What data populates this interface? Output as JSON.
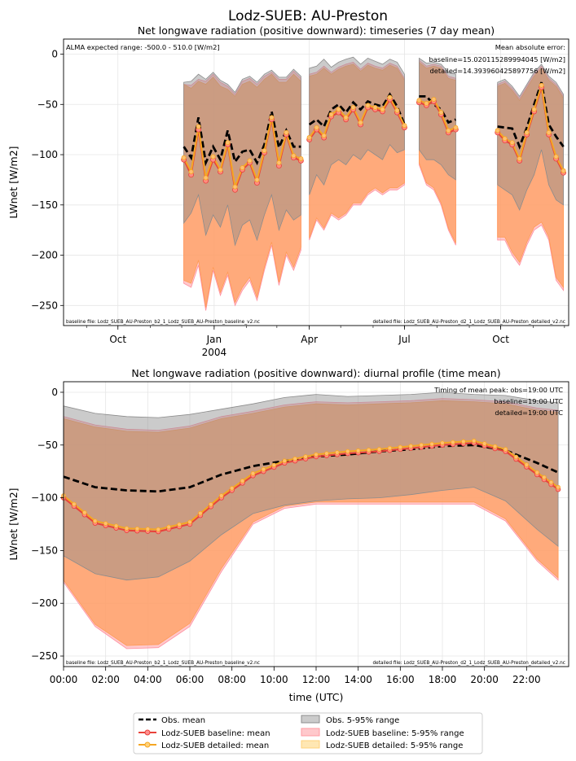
{
  "suptitle": "Lodz-SUEB: AU-Preston",
  "colors": {
    "obs_mean": "#000000",
    "baseline": "#e8423a",
    "detailed": "#f5a623",
    "obs_range": "#8c8c8c",
    "baseline_range": "#ff9aa0",
    "detailed_range": "#ffa060",
    "overlap_range": "#c88a6c"
  },
  "legend": {
    "position": "bottom-center",
    "items": [
      {
        "label": "Obs. mean",
        "kind": "dashed"
      },
      {
        "label": "Lodz-SUEB baseline: mean",
        "kind": "line-baseline"
      },
      {
        "label": "Lodz-SUEB detailed: mean",
        "kind": "line-detailed"
      },
      {
        "label": "Obs. 5-95% range",
        "kind": "patch-obs"
      },
      {
        "label": "Lodz-SUEB baseline: 5-95% range",
        "kind": "patch-baseline"
      },
      {
        "label": "Lodz-SUEB detailed: 5-95% range",
        "kind": "patch-detailed"
      }
    ]
  },
  "chart_data": [
    {
      "type": "line",
      "title": "Net longwave radiation (positive downward): timeseries (7 day mean)",
      "ylabel": "LWnet [W/m2]",
      "xlabel": "",
      "ylim": [
        -270,
        15
      ],
      "xlim": [
        "2003-08-10",
        "2004-12-05"
      ],
      "grid": true,
      "x_ticks": [
        {
          "date": "2003-10-01",
          "label": "Oct",
          "sublabel": ""
        },
        {
          "date": "2004-01-01",
          "label": "Jan",
          "sublabel": "2004"
        },
        {
          "date": "2004-04-01",
          "label": "Apr",
          "sublabel": ""
        },
        {
          "date": "2004-07-01",
          "label": "Jul",
          "sublabel": ""
        },
        {
          "date": "2004-10-01",
          "label": "Oct",
          "sublabel": ""
        }
      ],
      "y_ticks": [
        0,
        -50,
        -100,
        -150,
        -200,
        -250
      ],
      "y_tick_labels": [
        "0",
        "−50",
        "−100",
        "−150",
        "−200",
        "−250"
      ],
      "annotations": {
        "top_left": "ALMA expected range: -500.0 - 510.0 [W/m2]",
        "top_right": [
          "Mean absolute error:",
          "baseline=15.020115289994045 [W/m2]",
          "detailed=14.393960425897756 [W/m2]"
        ],
        "bottom_left": "baseline file: Lodz_SUEB_AU-Preston_b2_1_Lodz_SUEB_AU-Preston_baseline_v2.nc",
        "bottom_right": "detailed file: Lodz_SUEB_AU-Preston_d2_1_Lodz_SUEB_AU-Preston_detailed_v2.nc"
      },
      "segments": [
        {
          "x": [
            "2003-12-03",
            "2003-12-10",
            "2003-12-17",
            "2003-12-24",
            "2003-12-31",
            "2004-01-07",
            "2004-01-14",
            "2004-01-21",
            "2004-01-28",
            "2004-02-04",
            "2004-02-11",
            "2004-02-18",
            "2004-02-25",
            "2004-03-03",
            "2004-03-10",
            "2004-03-17",
            "2004-03-24"
          ],
          "obs_mean": [
            -92,
            -103,
            -63,
            -108,
            -92,
            -105,
            -76,
            -107,
            -97,
            -95,
            -108,
            -90,
            -57,
            -93,
            -76,
            -92,
            -92
          ],
          "baseline_mean": [
            -105,
            -120,
            -75,
            -126,
            -105,
            -117,
            -90,
            -135,
            -115,
            -108,
            -128,
            -98,
            -65,
            -111,
            -80,
            -103,
            -106
          ],
          "detailed_mean": [
            -103,
            -117,
            -72,
            -123,
            -102,
            -115,
            -88,
            -132,
            -113,
            -106,
            -125,
            -96,
            -63,
            -108,
            -78,
            -101,
            -104
          ],
          "obs_lo": [
            -168,
            -158,
            -140,
            -180,
            -160,
            -172,
            -150,
            -190,
            -170,
            -165,
            -185,
            -160,
            -140,
            -175,
            -155,
            -165,
            -160
          ],
          "obs_hi": [
            -28,
            -27,
            -20,
            -25,
            -18,
            -26,
            -30,
            -38,
            -25,
            -22,
            -28,
            -20,
            -16,
            -23,
            -23,
            -15,
            -22
          ],
          "baseline_lo": [
            -228,
            -232,
            -210,
            -255,
            -215,
            -240,
            -220,
            -250,
            -235,
            -225,
            -245,
            -215,
            -190,
            -230,
            -200,
            -215,
            -195
          ],
          "baseline_hi": [
            -30,
            -31,
            -25,
            -27,
            -20,
            -28,
            -32,
            -40,
            -27,
            -24,
            -30,
            -22,
            -18,
            -25,
            -25,
            -17,
            -24
          ],
          "detailed_lo": [
            -225,
            -228,
            -205,
            -252,
            -212,
            -237,
            -217,
            -247,
            -232,
            -222,
            -242,
            -212,
            -187,
            -227,
            -197,
            -212,
            -192
          ],
          "detailed_hi": [
            -30,
            -34,
            -27,
            -30,
            -23,
            -32,
            -35,
            -42,
            -30,
            -27,
            -33,
            -25,
            -20,
            -28,
            -28,
            -20,
            -27
          ]
        },
        {
          "x": [
            "2004-04-01",
            "2004-04-08",
            "2004-04-15",
            "2004-04-22",
            "2004-04-29",
            "2004-05-06",
            "2004-05-13",
            "2004-05-20",
            "2004-05-27",
            "2004-06-03",
            "2004-06-10",
            "2004-06-17",
            "2004-06-24",
            "2004-07-01"
          ],
          "obs_mean": [
            -70,
            -65,
            -72,
            -55,
            -50,
            -58,
            -48,
            -55,
            -47,
            -50,
            -52,
            -40,
            -52,
            -70
          ],
          "baseline_mean": [
            -85,
            -75,
            -83,
            -62,
            -58,
            -65,
            -55,
            -70,
            -53,
            -55,
            -57,
            -45,
            -58,
            -73
          ],
          "detailed_mean": [
            -83,
            -73,
            -81,
            -60,
            -55,
            -63,
            -53,
            -68,
            -51,
            -53,
            -55,
            -43,
            -56,
            -71
          ],
          "obs_lo": [
            -140,
            -120,
            -130,
            -110,
            -105,
            -110,
            -100,
            -105,
            -95,
            -100,
            -105,
            -90,
            -98,
            -95
          ],
          "obs_hi": [
            -14,
            -12,
            -5,
            -13,
            -8,
            -5,
            -3,
            -10,
            -4,
            -7,
            -10,
            -5,
            -8,
            -20
          ],
          "baseline_lo": [
            -185,
            -165,
            -175,
            -160,
            -165,
            -160,
            -150,
            -150,
            -140,
            -135,
            -140,
            -135,
            -135,
            -130
          ],
          "baseline_hi": [
            -20,
            -18,
            -12,
            -18,
            -13,
            -10,
            -8,
            -15,
            -9,
            -12,
            -14,
            -9,
            -12,
            -24
          ],
          "detailed_lo": [
            -183,
            -163,
            -173,
            -158,
            -163,
            -158,
            -148,
            -148,
            -138,
            -133,
            -138,
            -133,
            -133,
            -128
          ],
          "detailed_hi": [
            -22,
            -20,
            -14,
            -20,
            -15,
            -12,
            -10,
            -17,
            -11,
            -14,
            -16,
            -11,
            -14,
            -26
          ]
        },
        {
          "x": [
            "2004-07-15",
            "2004-07-22",
            "2004-07-29",
            "2004-08-05",
            "2004-08-12",
            "2004-08-19"
          ],
          "obs_mean": [
            -42,
            -42,
            -50,
            -55,
            -68,
            -65
          ],
          "baseline_mean": [
            -48,
            -51,
            -47,
            -60,
            -78,
            -75
          ],
          "detailed_mean": [
            -46,
            -49,
            -45,
            -58,
            -76,
            -73
          ],
          "obs_lo": [
            -95,
            -105,
            -105,
            -110,
            -120,
            -125
          ],
          "obs_hi": [
            -4,
            -9,
            -8,
            -10,
            -18,
            -20
          ],
          "baseline_lo": [
            -110,
            -130,
            -135,
            -150,
            -175,
            -190
          ],
          "baseline_hi": [
            -6,
            -12,
            -10,
            -12,
            -22,
            -24
          ],
          "detailed_lo": [
            -108,
            -128,
            -133,
            -148,
            -173,
            -188
          ],
          "detailed_hi": [
            -8,
            -14,
            -12,
            -14,
            -24,
            -26
          ]
        },
        {
          "x": [
            "2004-09-28",
            "2004-10-05",
            "2004-10-12",
            "2004-10-19",
            "2004-10-26",
            "2004-11-02",
            "2004-11-09",
            "2004-11-16",
            "2004-11-23",
            "2004-11-30"
          ],
          "obs_mean": [
            -72,
            -73,
            -74,
            -92,
            -73,
            -50,
            -28,
            -70,
            -82,
            -92
          ],
          "baseline_mean": [
            -78,
            -86,
            -90,
            -106,
            -80,
            -57,
            -33,
            -80,
            -104,
            -118
          ],
          "detailed_mean": [
            -76,
            -84,
            -88,
            -104,
            -78,
            -55,
            -31,
            -78,
            -102,
            -116
          ],
          "obs_lo": [
            -130,
            -135,
            -140,
            -155,
            -135,
            -120,
            -95,
            -130,
            -145,
            -150
          ],
          "obs_hi": [
            -28,
            -25,
            -32,
            -42,
            -30,
            -18,
            -10,
            -22,
            -28,
            -40
          ],
          "baseline_lo": [
            -185,
            -185,
            -200,
            -210,
            -190,
            -175,
            -170,
            -185,
            -225,
            -235
          ],
          "baseline_hi": [
            -30,
            -27,
            -34,
            -44,
            -32,
            -20,
            -12,
            -24,
            -30,
            -42
          ],
          "detailed_lo": [
            -182,
            -182,
            -197,
            -207,
            -187,
            -172,
            -167,
            -182,
            -222,
            -232
          ],
          "detailed_hi": [
            -32,
            -29,
            -36,
            -46,
            -34,
            -22,
            -14,
            -26,
            -32,
            -44
          ]
        }
      ]
    },
    {
      "type": "line",
      "title": "Net longwave radiation (positive downward): diurnal profile (time mean)",
      "xlabel": "time (UTC)",
      "ylabel": "LWnet [W/m2]",
      "xlim": [
        0,
        24
      ],
      "ylim": [
        -260,
        10
      ],
      "grid": true,
      "x_ticks": [
        0,
        2,
        4,
        6,
        8,
        10,
        12,
        14,
        16,
        18,
        20,
        22
      ],
      "x_tick_labels": [
        "00:00",
        "02:00",
        "04:00",
        "06:00",
        "08:00",
        "10:00",
        "12:00",
        "14:00",
        "16:00",
        "18:00",
        "20:00",
        "22:00"
      ],
      "y_ticks": [
        0,
        -50,
        -100,
        -150,
        -200,
        -250
      ],
      "y_tick_labels": [
        "0",
        "−50",
        "−100",
        "−150",
        "−200",
        "−250"
      ],
      "annotations": {
        "top_right": [
          "Timing of mean peak: obs=19:00 UTC",
          "baseline=19:00 UTC",
          "detailed=19:00 UTC"
        ],
        "bottom_left": "baseline file: Lodz_SUEB_AU-Preston_b2_1_Lodz_SUEB_AU-Preston_baseline_v2.nc",
        "bottom_right": "detailed file: Lodz_SUEB_AU-Preston_d2_1_Lodz_SUEB_AU-Preston_detailed_v2.nc"
      },
      "x": [
        0,
        1.5,
        3,
        4.5,
        6,
        7.5,
        9,
        10.5,
        12,
        13.5,
        15,
        16.5,
        18,
        19.5,
        21,
        22.5,
        23.5
      ],
      "obs_mean": [
        -80,
        -90,
        -93,
        -94,
        -90,
        -78,
        -70,
        -65,
        -61,
        -59,
        -56,
        -54,
        -51,
        -50,
        -55,
        -67,
        -76
      ],
      "baseline_mean": [
        -100,
        -124,
        -131,
        -132,
        -125,
        -100,
        -79,
        -67,
        -61,
        -58,
        -56,
        -53,
        -50,
        -48,
        -56,
        -78,
        -92
      ],
      "detailed_mean": [
        -98,
        -122,
        -129,
        -130,
        -123,
        -98,
        -77,
        -65,
        -59,
        -56,
        -54,
        -51,
        -48,
        -46,
        -54,
        -76,
        -90
      ],
      "obs_lo": [
        -155,
        -172,
        -178,
        -175,
        -160,
        -135,
        -115,
        -107,
        -103,
        -101,
        -100,
        -97,
        -93,
        -90,
        -103,
        -130,
        -146
      ],
      "obs_hi": [
        -13,
        -20,
        -23,
        -24,
        -21,
        -16,
        -11,
        -5,
        -2,
        -4,
        -3,
        -2,
        0,
        -2,
        -3,
        -8,
        -10
      ],
      "baseline_lo": [
        -180,
        -222,
        -243,
        -242,
        -222,
        -170,
        -125,
        -110,
        -106,
        -106,
        -106,
        -106,
        -106,
        -106,
        -122,
        -160,
        -178
      ],
      "baseline_hi": [
        -23,
        -31,
        -35,
        -36,
        -32,
        -23,
        -18,
        -12,
        -9,
        -10,
        -9,
        -8,
        -6,
        -7,
        -9,
        -15,
        -17
      ],
      "detailed_lo": [
        -178,
        -220,
        -240,
        -239,
        -219,
        -167,
        -123,
        -108,
        -104,
        -104,
        -104,
        -104,
        -104,
        -104,
        -120,
        -158,
        -176
      ],
      "detailed_hi": [
        -25,
        -33,
        -37,
        -38,
        -34,
        -25,
        -20,
        -14,
        -11,
        -12,
        -11,
        -10,
        -8,
        -9,
        -11,
        -17,
        -19
      ]
    }
  ]
}
